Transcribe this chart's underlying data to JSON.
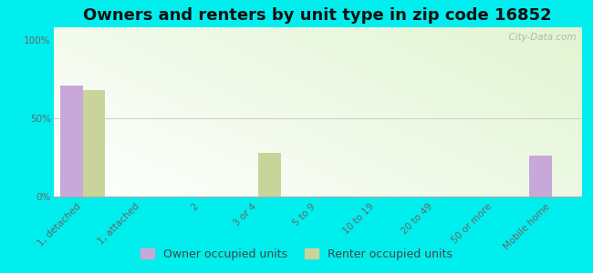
{
  "title": "Owners and renters by unit type in zip code 16852",
  "categories": [
    "1, detached",
    "1, attached",
    "2",
    "3 or 4",
    "5 to 9",
    "10 to 19",
    "20 to 49",
    "50 or more",
    "Mobile home"
  ],
  "owner_values": [
    71,
    0,
    0,
    0,
    0,
    0,
    0,
    0,
    26
  ],
  "renter_values": [
    68,
    0,
    0,
    28,
    0,
    0,
    0,
    0,
    0
  ],
  "owner_color": "#c8a8d8",
  "renter_color": "#c8d49a",
  "outer_background": "#00eeee",
  "yticks": [
    0,
    50,
    100
  ],
  "ylabels": [
    "0%",
    "50%",
    "100%"
  ],
  "ylim": [
    0,
    108
  ],
  "bar_width": 0.38,
  "title_fontsize": 13,
  "tick_fontsize": 7.5,
  "legend_fontsize": 9,
  "watermark": "  City-Data.com"
}
